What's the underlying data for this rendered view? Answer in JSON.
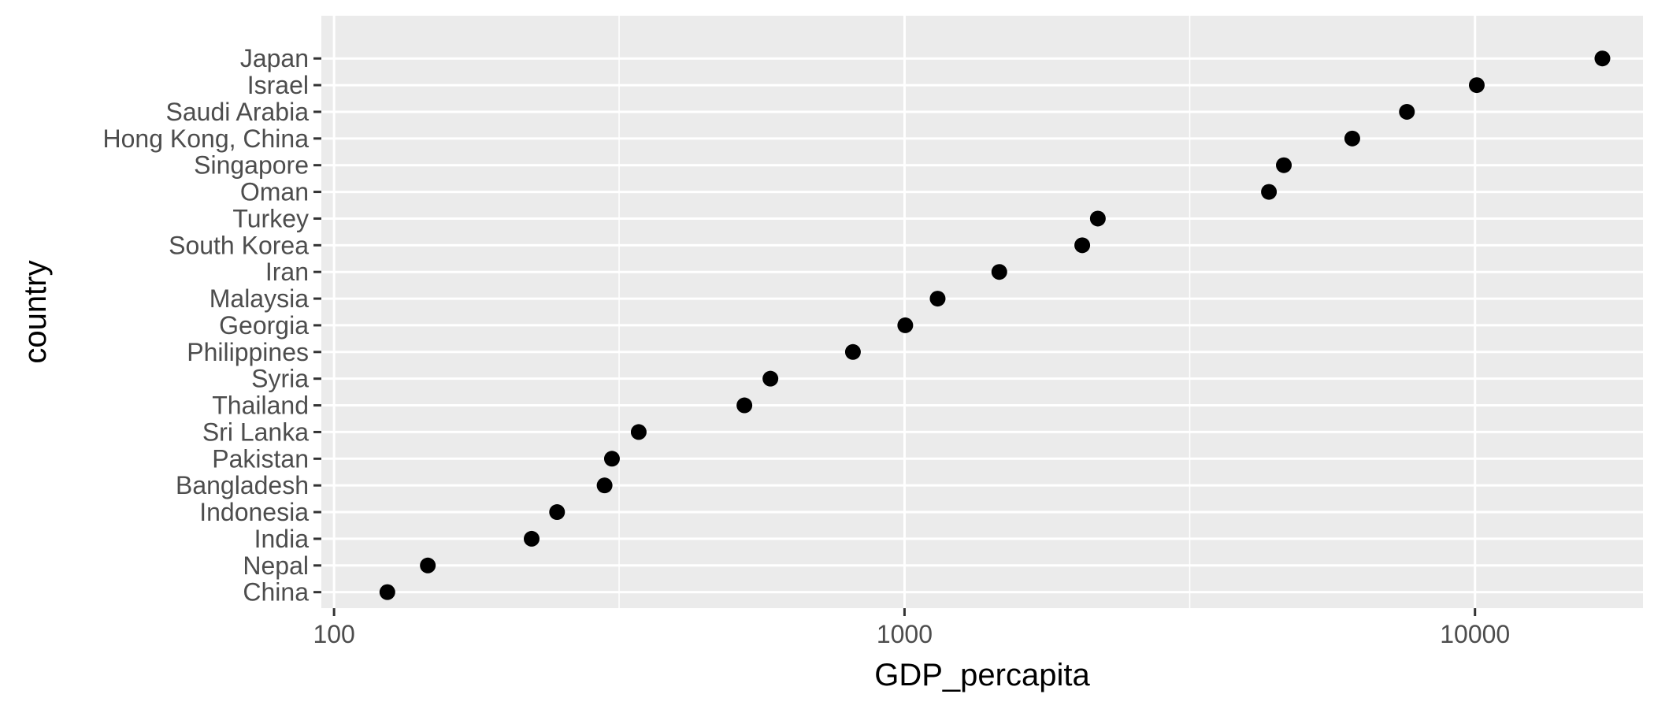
{
  "chart_data": {
    "type": "scatter",
    "title": "",
    "xlabel": "GDP_percapita",
    "ylabel": "country",
    "x_scale": "log10",
    "xlim": [
      95,
      19700
    ],
    "x_ticks": [
      {
        "value": 100,
        "label": "100"
      },
      {
        "value": 1000,
        "label": "1000"
      },
      {
        "value": 10000,
        "label": "10000"
      }
    ],
    "x_minor_ticks": [
      316,
      3162
    ],
    "grid": true,
    "legend": "none",
    "points": [
      {
        "country": "China",
        "x": 124
      },
      {
        "country": "Nepal",
        "x": 146
      },
      {
        "country": "India",
        "x": 222
      },
      {
        "country": "Indonesia",
        "x": 246
      },
      {
        "country": "Bangladesh",
        "x": 298
      },
      {
        "country": "Pakistan",
        "x": 307
      },
      {
        "country": "Sri Lanka",
        "x": 342
      },
      {
        "country": "Thailand",
        "x": 524
      },
      {
        "country": "Syria",
        "x": 582
      },
      {
        "country": "Philippines",
        "x": 812
      },
      {
        "country": "Georgia",
        "x": 1003
      },
      {
        "country": "Malaysia",
        "x": 1143
      },
      {
        "country": "Iran",
        "x": 1466
      },
      {
        "country": "South Korea",
        "x": 2049
      },
      {
        "country": "Turkey",
        "x": 2182
      },
      {
        "country": "Oman",
        "x": 4353
      },
      {
        "country": "Singapore",
        "x": 4623
      },
      {
        "country": "Hong Kong, China",
        "x": 6094
      },
      {
        "country": "Saudi Arabia",
        "x": 7597
      },
      {
        "country": "Israel",
        "x": 10072
      },
      {
        "country": "Japan",
        "x": 16724
      }
    ]
  },
  "colors": {
    "panel_background": "#EBEBEB",
    "grid_line": "#FFFFFF",
    "point": "#000000",
    "tick": "#333333",
    "tick_label": "#4D4D4D",
    "axis_title": "#000000"
  }
}
